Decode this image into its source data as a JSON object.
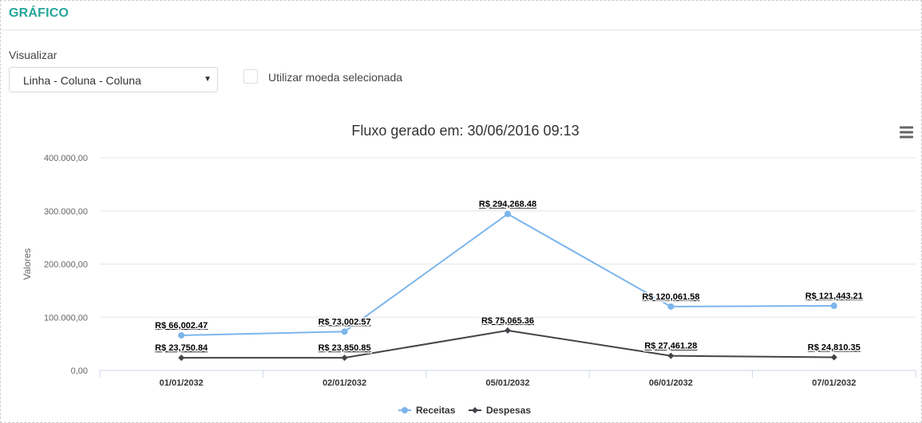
{
  "panel": {
    "title": "GRÁFICO"
  },
  "controls": {
    "view_label": "Visualizar",
    "view_selected": "Linha - Coluna - Coluna",
    "currency_checkbox_label": "Utilizar moeda selecionada",
    "currency_checked": false
  },
  "chart_menu_icon": "hamburger-menu-icon",
  "chart_data": {
    "type": "line",
    "title": "Fluxo gerado em: 30/06/2016 09:13",
    "ylabel": "Valores",
    "xlabel": "",
    "categories": [
      "01/01/2032",
      "02/01/2032",
      "05/01/2032",
      "06/01/2032",
      "07/01/2032"
    ],
    "ylim": [
      0,
      400000
    ],
    "yticks": [
      0,
      100000,
      200000,
      300000,
      400000
    ],
    "ytick_labels": [
      "0,00",
      "100.000,00",
      "200.000,00",
      "300.000,00",
      "400.000,00"
    ],
    "grid": true,
    "legend_position": "bottom-center",
    "series": [
      {
        "name": "Receitas",
        "color": "#7cb5ec",
        "marker": "circle",
        "values": [
          66002.47,
          73002.57,
          294268.48,
          120061.58,
          121443.21
        ],
        "labels": [
          "R$ 66,002.47",
          "R$ 73,002.57",
          "R$ 294,268.48",
          "R$ 120,061.58",
          "R$ 121,443.21"
        ]
      },
      {
        "name": "Despesas",
        "color": "#434348",
        "marker": "diamond",
        "values": [
          23750.84,
          23850.85,
          75065.36,
          27461.28,
          24810.35
        ],
        "labels": [
          "R$ 23,750.84",
          "R$ 23,850.85",
          "R$ 75,065.36",
          "R$ 27,461.28",
          "R$ 24,810.35"
        ]
      }
    ]
  }
}
